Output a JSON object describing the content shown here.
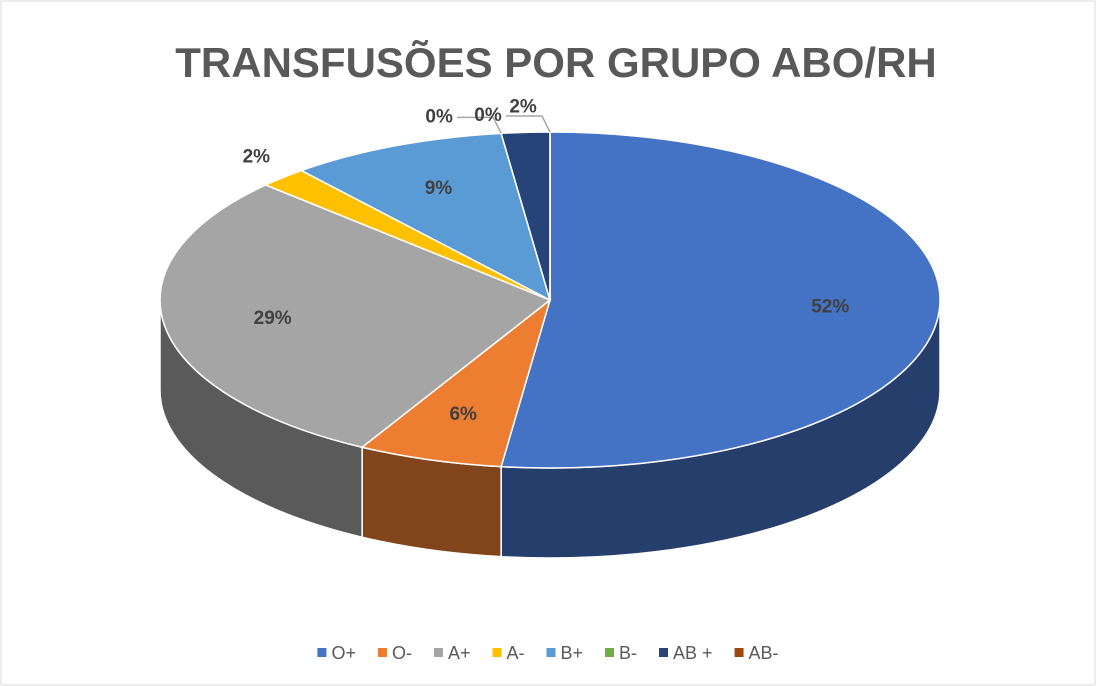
{
  "chart_data": {
    "type": "pie3d",
    "title": "TRANSFUSÕES POR GRUPO ABO/RH",
    "categories": [
      "O+",
      "O-",
      "A+",
      "A-",
      "B+",
      "B-",
      "AB +",
      "AB-"
    ],
    "values": [
      52,
      6,
      29,
      2,
      9,
      0,
      2,
      0
    ],
    "value_labels": [
      "52%",
      "6%",
      "29%",
      "2%",
      "9%",
      "0%",
      "2%",
      "0%"
    ],
    "colors": [
      "#4472c4",
      "#ed7d31",
      "#a5a5a5",
      "#ffc000",
      "#5b9bd5",
      "#70ad47",
      "#264478",
      "#9e480e"
    ],
    "legend": "bottom"
  }
}
